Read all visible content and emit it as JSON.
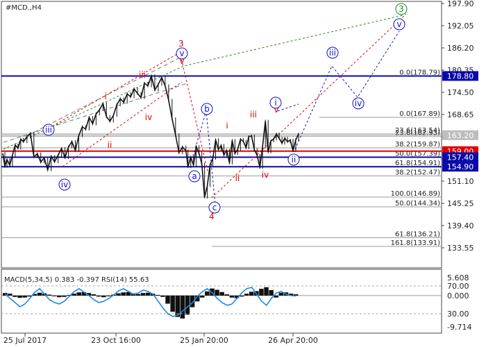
{
  "chart_data": [
    {
      "type": "line",
      "title": "#MCD.,H4",
      "ylim": [
        130,
        198
      ],
      "y_ticks": [
        "197.90",
        "192.05",
        "186.20",
        "180.35",
        "174.50",
        "168.65",
        "162.80",
        "156.95",
        "151.10",
        "145.25",
        "139.40",
        "133.55"
      ],
      "x_ticks": [
        "25 Jul 2017",
        "23 Oct 16:00",
        "25 Jan 20:00",
        "26 Apr 20:00"
      ],
      "price_markers": [
        {
          "label": "178.80",
          "value": 178.8,
          "color": "#0a0aa8"
        },
        {
          "label": "163.20",
          "value": 163.2,
          "color": "#bdbdbd"
        },
        {
          "label": "159.00",
          "value": 159.0,
          "color": "#e00000"
        },
        {
          "label": "157.40",
          "value": 157.4,
          "color": "#0a0aa8"
        },
        {
          "label": "154.90",
          "value": 154.9,
          "color": "#0a0aa8"
        }
      ],
      "fib_levels": [
        {
          "label": "0.0(178.79)",
          "value": 178.79
        },
        {
          "label": "0.0(167.89)",
          "value": 167.89
        },
        {
          "label": "23.6(163.54)",
          "value": 163.54
        },
        {
          "label": "23.6(162.93)",
          "value": 162.93
        },
        {
          "label": "38.2(159.87)",
          "value": 159.87
        },
        {
          "label": "50.0(157.39)",
          "value": 157.39
        },
        {
          "label": "61.8(154.91)",
          "value": 154.91
        },
        {
          "label": "38.2(152.47)",
          "value": 152.47
        },
        {
          "label": "100.0(146.89)",
          "value": 146.89
        },
        {
          "label": "50.0(144.34)",
          "value": 144.34
        },
        {
          "label": "61.8(136.21)",
          "value": 136.21
        },
        {
          "label": "161.8(133.91)",
          "value": 133.91
        }
      ],
      "wave_labels": [
        {
          "text": "iii",
          "color": "#1010c0",
          "circled": true
        },
        {
          "text": "iv",
          "color": "#1010c0",
          "circled": true
        },
        {
          "text": "i",
          "color": "#e00000",
          "circled": false
        },
        {
          "text": "ii",
          "color": "#e00000",
          "circled": false
        },
        {
          "text": "iii",
          "color": "#e00000",
          "circled": false
        },
        {
          "text": "iv",
          "color": "#e00000",
          "circled": false
        },
        {
          "text": "v",
          "color": "#e00000",
          "circled": false
        },
        {
          "text": "3",
          "color": "#e00000",
          "circled": false
        },
        {
          "text": "v",
          "color": "#1010c0",
          "circled": true
        },
        {
          "text": "b",
          "color": "#1010c0",
          "circled": true
        },
        {
          "text": "a",
          "color": "#1010c0",
          "circled": true
        },
        {
          "text": "c",
          "color": "#1010c0",
          "circled": true
        },
        {
          "text": "4",
          "color": "#e00000",
          "circled": false
        },
        {
          "text": "i",
          "color": "#e00000",
          "circled": false
        },
        {
          "text": "ii",
          "color": "#e00000",
          "circled": false
        },
        {
          "text": "iii",
          "color": "#e00000",
          "circled": false
        },
        {
          "text": "iv",
          "color": "#e00000",
          "circled": false
        },
        {
          "text": "v",
          "color": "#e00000",
          "circled": false
        },
        {
          "text": "i",
          "color": "#1010c0",
          "circled": true
        },
        {
          "text": "ii",
          "color": "#1010c0",
          "circled": true
        },
        {
          "text": "iii",
          "color": "#1010c0",
          "circled": true
        },
        {
          "text": "iv",
          "color": "#1010c0",
          "circled": true
        },
        {
          "text": "v",
          "color": "#1010c0",
          "circled": true
        },
        {
          "text": "5",
          "color": "#e00000",
          "circled": false
        },
        {
          "text": "3",
          "color": "#1a8a1a",
          "circled": true
        }
      ],
      "series": [
        {
          "x_index": [
            0,
            3,
            6,
            10,
            14,
            18,
            22,
            26,
            30,
            35,
            40,
            45,
            50,
            55,
            60,
            65,
            70,
            75,
            80,
            85,
            90,
            95,
            100,
            105,
            110,
            115,
            120,
            125,
            130,
            135,
            140,
            145,
            150,
            155,
            160,
            165,
            170,
            175,
            180,
            185,
            190,
            195,
            200,
            205,
            210,
            215,
            220,
            225,
            230,
            235,
            240,
            245,
            250,
            255,
            260,
            265,
            268,
            272,
            276,
            280,
            284,
            288,
            292,
            296,
            300,
            304,
            308,
            312,
            316,
            320,
            324,
            328,
            332,
            336,
            340,
            344,
            348,
            352,
            356,
            360,
            364,
            368,
            372,
            376,
            380,
            384,
            388,
            392,
            396,
            400,
            404,
            408,
            412,
            416,
            420,
            424,
            428
          ],
          "values": [
            158.4,
            155.0,
            156.8,
            155.3,
            157.9,
            160.6,
            159.8,
            162.1,
            161.5,
            162.8,
            163.7,
            157.5,
            158.3,
            156.1,
            157.2,
            154.1,
            157.6,
            156.2,
            157.9,
            159.7,
            157.3,
            160.1,
            161.5,
            159.2,
            163.1,
            165.4,
            164.8,
            167.9,
            166.2,
            168.8,
            169.9,
            171.5,
            168.1,
            166.9,
            168.4,
            171.2,
            172.8,
            171.9,
            174.1,
            173.3,
            175.4,
            174.2,
            173.1,
            176.9,
            176.2,
            178.8,
            175.1,
            176.6,
            178.4,
            176.2,
            172.4,
            167.5,
            163.3,
            158.6,
            160.1,
            159.1,
            154.9,
            157.4,
            155.3,
            160.2,
            158.4,
            155.6,
            146.9,
            149.9,
            155.4,
            157.1,
            162.0,
            159.4,
            160.5,
            158.0,
            159.2,
            155.9,
            161.8,
            158.4,
            159.5,
            162.1,
            161.6,
            159.9,
            162.8,
            163.0,
            159.4,
            157.9,
            154.7,
            160.2,
            166.9,
            158.8,
            161.7,
            162.2,
            163.5,
            162.4,
            161.1,
            162.4,
            161.5,
            161.9,
            159.1,
            162.0,
            163.5
          ]
        }
      ],
      "projection": [
        186.0,
        177.8,
        193.0
      ]
    },
    {
      "type": "line",
      "title": "MACD(5,34,5) 0.383 -0.397 RSI(14) 55.63",
      "ylim": [
        -9.9,
        6.0
      ],
      "y_ticks_left": [
        "5.608",
        "0.000",
        "-9.714"
      ],
      "y_ticks_right": [
        "70.00",
        "30.00"
      ],
      "macd_hist": [
        0.8,
        0.6,
        -0.4,
        -0.7,
        -0.6,
        -0.3,
        0.5,
        0.9,
        0.7,
        0.3,
        -0.2,
        -0.5,
        -0.4,
        0.2,
        0.6,
        1.0,
        1.1,
        0.8,
        0.4,
        -0.3,
        -0.5,
        -0.2,
        0.3,
        0.7,
        1.0,
        1.1,
        0.7,
        0.5,
        0.8,
        0.9,
        0.6,
        0.2,
        -0.4,
        -2.5,
        -5.0,
        -6.6,
        -7.1,
        -5.9,
        -3.6,
        -1.8,
        -0.6,
        1.3,
        2.2,
        1.8,
        1.1,
        0.4,
        -0.6,
        -0.8,
        -0.3,
        0.6,
        1.2,
        1.4,
        2.1,
        2.6,
        1.7,
        -0.6,
        0.9,
        1.0,
        0.6,
        0.4
      ],
      "rsi": [
        58,
        52,
        46,
        40,
        44,
        52,
        61,
        66,
        58,
        50,
        46,
        44,
        48,
        55,
        62,
        66,
        61,
        56,
        50,
        46,
        48,
        52,
        57,
        63,
        66,
        62,
        58,
        60,
        64,
        62,
        58,
        48,
        38,
        30,
        26,
        28,
        34,
        40,
        46,
        55,
        62,
        66,
        60,
        52,
        46,
        42,
        44,
        52,
        60,
        66,
        68,
        58,
        48,
        42,
        52,
        60,
        62,
        58,
        56,
        55.63
      ]
    }
  ]
}
